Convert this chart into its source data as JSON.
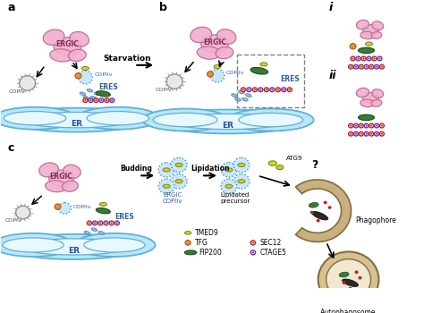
{
  "bg_color": "#ffffff",
  "er_color": "#b8e8f8",
  "er_edge_color": "#60b0d8",
  "er_inner_color": "#e8f8ff",
  "ergic_color": "#f0b0d0",
  "ergic_edge_color": "#c06888",
  "phagophore_color": "#c8b080",
  "phagophore_edge_color": "#807040",
  "autophagosome_outer": "#d8c090",
  "autophagosome_inner": "#f0e8d0",
  "panel_labels": [
    "a",
    "b",
    "c",
    "i",
    "ii"
  ],
  "starvation_text": "Starvation",
  "budding_text": "Budding",
  "lipidation_text": "Lipidation",
  "ergic_copIIv_text": "ERGIC\nCOPIIv",
  "lipidated_precursor_text": "Lipidated\nprecursor",
  "phagophore_text": "Phagophore",
  "autophagosome_text": "Autophagosome",
  "ATG9_text": "ATG9",
  "ERES_text": "ERES",
  "ER_text": "ER",
  "ERGIC_text": "ERGIC",
  "COPIv_text": "COPIv",
  "COPIIv_text": "COPIIv",
  "question_mark": "?",
  "legend_items": [
    {
      "label": "TMED9",
      "color": "#c8c840"
    },
    {
      "label": "TFG",
      "color": "#e8a040"
    },
    {
      "label": "FIP200",
      "color": "#408040"
    },
    {
      "label": "SEC12",
      "color": "#c03030"
    },
    {
      "label": "CTAGE5",
      "color": "#8040a0"
    }
  ]
}
